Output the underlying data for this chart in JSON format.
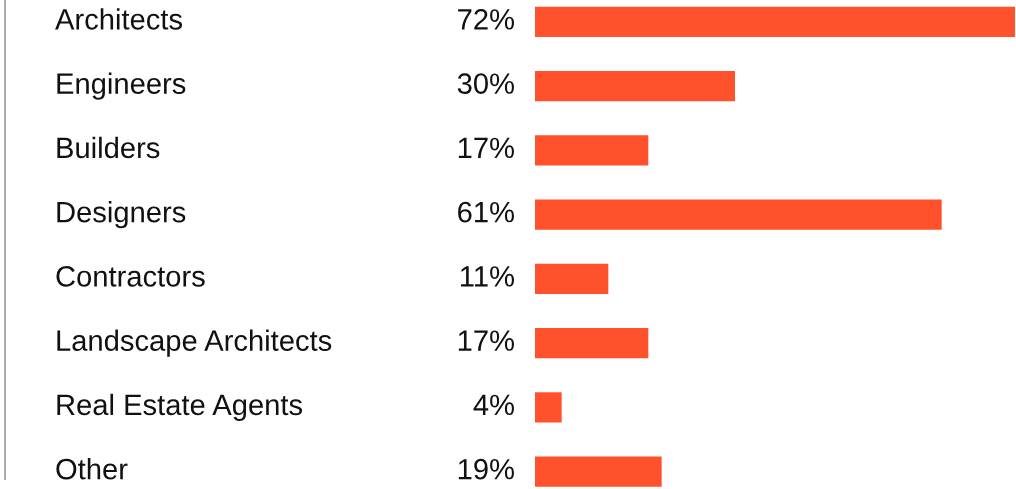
{
  "chart_data": {
    "type": "bar",
    "orientation": "horizontal",
    "categories": [
      "Architects",
      "Engineers",
      "Builders",
      "Designers",
      "Contractors",
      "Landscape Architects",
      "Real Estate Agents",
      "Other"
    ],
    "values": [
      72,
      30,
      17,
      61,
      11,
      17,
      4,
      19
    ],
    "value_labels": [
      "72%",
      "30%",
      "17%",
      "61%",
      "11%",
      "17%",
      "4%",
      "19%"
    ],
    "color": "#ff512b",
    "xlim": [
      0,
      72
    ],
    "tick_labels": false
  }
}
